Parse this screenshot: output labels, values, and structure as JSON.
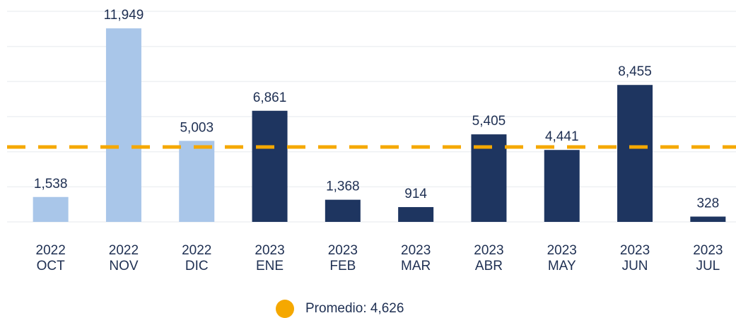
{
  "chart_data": {
    "type": "bar",
    "categories": [
      [
        "2022",
        "OCT"
      ],
      [
        "2022",
        "NOV"
      ],
      [
        "2022",
        "DIC"
      ],
      [
        "2023",
        "ENE"
      ],
      [
        "2023",
        "FEB"
      ],
      [
        "2023",
        "MAR"
      ],
      [
        "2023",
        "ABR"
      ],
      [
        "2023",
        "MAY"
      ],
      [
        "2023",
        "JUN"
      ],
      [
        "2023",
        "JUL"
      ]
    ],
    "values": [
      1538,
      11949,
      5003,
      6861,
      1368,
      914,
      5405,
      4441,
      8455,
      328
    ],
    "value_labels": [
      "1,538",
      "11,949",
      "5,003",
      "6,861",
      "1,368",
      "914",
      "5,405",
      "4,441",
      "8,455",
      "328"
    ],
    "colors": [
      "#a9c6e9",
      "#a9c6e9",
      "#a9c6e9",
      "#1e3560",
      "#1e3560",
      "#1e3560",
      "#1e3560",
      "#1e3560",
      "#1e3560",
      "#1e3560"
    ],
    "ylim": [
      0,
      13700
    ],
    "yticks": [
      0,
      2167,
      4333,
      6500,
      8667,
      10833,
      13000
    ],
    "grid": true,
    "average": {
      "label": "Promedio: 4,626",
      "value": 4626,
      "color": "#f5a800"
    }
  }
}
